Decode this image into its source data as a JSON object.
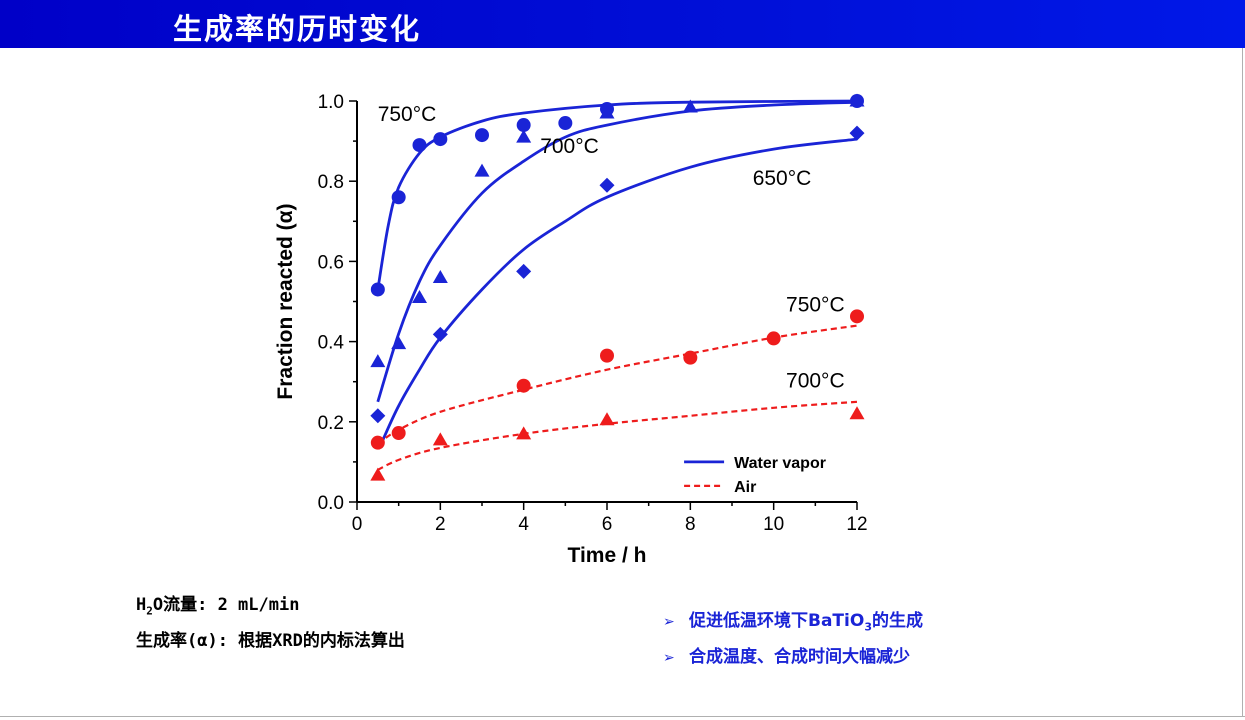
{
  "header": {
    "title": "生成率的历时变化"
  },
  "notes": {
    "line1_prefix": "H",
    "line1_sub": "2",
    "line1_suffix": "O流量: 2 mL/min",
    "line2": "生成率(α): 根据XRD的内标法算出"
  },
  "bullets": [
    {
      "arrow": "➢",
      "before": "促进低温环境下BaTiO",
      "sub": "3",
      "after": "的生成"
    },
    {
      "arrow": "➢",
      "before": "合成温度、合成时间大幅减少",
      "sub": "",
      "after": ""
    }
  ],
  "colors": {
    "water_vapor": "#1a24d6",
    "air": "#ee1c1c",
    "header": "#0010d8"
  },
  "chart_data": {
    "type": "scatter",
    "xlabel": "Time / h",
    "ylabel": "Fraction reacted (α)",
    "xlim": [
      0,
      12
    ],
    "ylim": [
      0,
      1.0
    ],
    "xticks": [
      0,
      2,
      4,
      6,
      8,
      10,
      12
    ],
    "xtick_labels": [
      "0",
      "2",
      "4",
      "6",
      "8",
      "10",
      "12"
    ],
    "yticks": [
      0,
      0.2,
      0.4,
      0.6,
      0.8,
      1.0
    ],
    "ytick_labels": [
      "0.0",
      "0.2",
      "0.4",
      "0.6",
      "0.8",
      "1.0"
    ],
    "grid": false,
    "legend_position": "bottom-right",
    "legend": [
      {
        "label": "Water vapor",
        "style": "solid",
        "color": "#1a24d6"
      },
      {
        "label": "Air",
        "style": "dashed",
        "color": "#ee1c1c"
      }
    ],
    "series": [
      {
        "label": "750°C",
        "group": "Water vapor",
        "marker": "circle",
        "color": "#1a24d6",
        "points": [
          [
            0.5,
            0.53
          ],
          [
            1,
            0.76
          ],
          [
            1.5,
            0.89
          ],
          [
            2,
            0.905
          ],
          [
            3,
            0.915
          ],
          [
            4,
            0.94
          ],
          [
            5,
            0.945
          ],
          [
            6,
            0.98
          ],
          [
            12,
            1.0
          ]
        ],
        "fit": [
          [
            0.5,
            0.53
          ],
          [
            0.75,
            0.69
          ],
          [
            1,
            0.785
          ],
          [
            1.5,
            0.87
          ],
          [
            2,
            0.91
          ],
          [
            3,
            0.95
          ],
          [
            4,
            0.97
          ],
          [
            6,
            0.99
          ],
          [
            8,
            0.997
          ],
          [
            12,
            1.0
          ]
        ]
      },
      {
        "label": "700°C",
        "group": "Water vapor",
        "marker": "triangle",
        "color": "#1a24d6",
        "points": [
          [
            0.5,
            0.35
          ],
          [
            1,
            0.395
          ],
          [
            1.5,
            0.51
          ],
          [
            2,
            0.56
          ],
          [
            3,
            0.825
          ],
          [
            4,
            0.91
          ],
          [
            6,
            0.97
          ],
          [
            8,
            0.985
          ],
          [
            12,
            1.0
          ]
        ],
        "fit": [
          [
            0.5,
            0.25
          ],
          [
            1,
            0.42
          ],
          [
            1.5,
            0.55
          ],
          [
            2,
            0.64
          ],
          [
            3,
            0.77
          ],
          [
            4,
            0.85
          ],
          [
            5,
            0.91
          ],
          [
            6,
            0.94
          ],
          [
            8,
            0.975
          ],
          [
            10,
            0.99
          ],
          [
            12,
            0.997
          ]
        ]
      },
      {
        "label": "650°C",
        "group": "Water vapor",
        "marker": "diamond",
        "color": "#1a24d6",
        "points": [
          [
            0.5,
            0.215
          ],
          [
            2,
            0.418
          ],
          [
            4,
            0.575
          ],
          [
            6,
            0.79
          ],
          [
            12,
            0.92
          ]
        ],
        "fit": [
          [
            0.6,
            0.15
          ],
          [
            1,
            0.24
          ],
          [
            1.5,
            0.33
          ],
          [
            2,
            0.41
          ],
          [
            3,
            0.53
          ],
          [
            4,
            0.63
          ],
          [
            5,
            0.7
          ],
          [
            6,
            0.76
          ],
          [
            8,
            0.835
          ],
          [
            10,
            0.88
          ],
          [
            12,
            0.905
          ]
        ]
      },
      {
        "label": "750°C",
        "group": "Air",
        "marker": "circle",
        "color": "#ee1c1c",
        "points": [
          [
            0.5,
            0.148
          ],
          [
            1,
            0.172
          ],
          [
            4,
            0.29
          ],
          [
            6,
            0.365
          ],
          [
            8,
            0.36
          ],
          [
            10,
            0.408
          ],
          [
            12,
            0.463
          ]
        ],
        "fit": [
          [
            0.5,
            0.145
          ],
          [
            1,
            0.18
          ],
          [
            2,
            0.225
          ],
          [
            4,
            0.28
          ],
          [
            6,
            0.33
          ],
          [
            8,
            0.37
          ],
          [
            10,
            0.41
          ],
          [
            12,
            0.44
          ]
        ]
      },
      {
        "label": "700°C",
        "group": "Air",
        "marker": "triangle",
        "color": "#ee1c1c",
        "points": [
          [
            0.5,
            0.067
          ],
          [
            2,
            0.155
          ],
          [
            4,
            0.17
          ],
          [
            6,
            0.205
          ],
          [
            12,
            0.22
          ]
        ],
        "fit": [
          [
            0.5,
            0.08
          ],
          [
            1,
            0.105
          ],
          [
            2,
            0.135
          ],
          [
            4,
            0.17
          ],
          [
            6,
            0.195
          ],
          [
            8,
            0.215
          ],
          [
            10,
            0.235
          ],
          [
            12,
            0.25
          ]
        ]
      }
    ],
    "annotations": [
      {
        "text": "750°C",
        "x": 1.2,
        "y": 0.95,
        "color": "#000000"
      },
      {
        "text": "700°C",
        "x": 5.1,
        "y": 0.87,
        "color": "#000000"
      },
      {
        "text": "650°C",
        "x": 10.2,
        "y": 0.79,
        "color": "#000000"
      },
      {
        "text": "750°C",
        "x": 11.0,
        "y": 0.475,
        "color": "#000000"
      },
      {
        "text": "700°C",
        "x": 11.0,
        "y": 0.285,
        "color": "#000000"
      }
    ]
  }
}
